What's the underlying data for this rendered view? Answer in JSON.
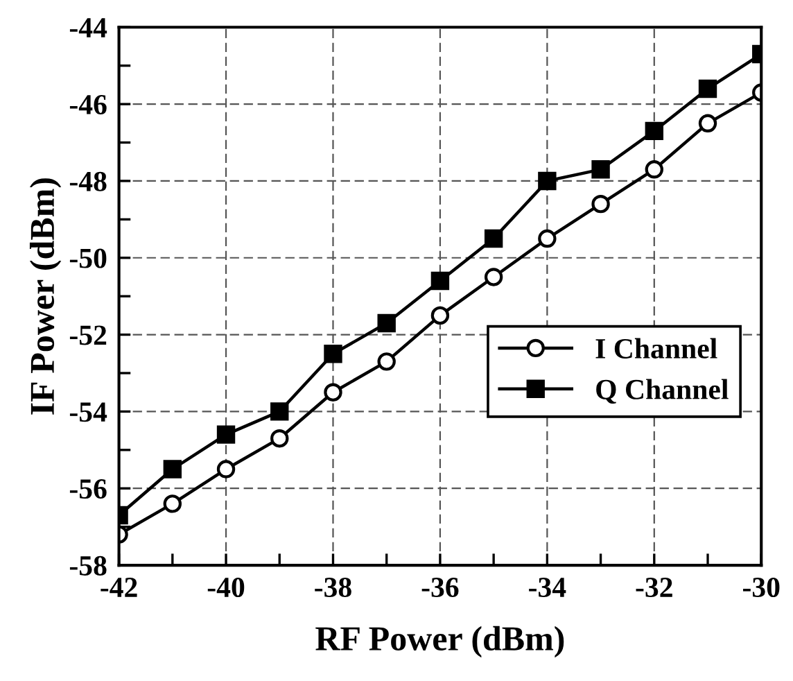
{
  "chart_data": {
    "type": "line",
    "xlabel": "RF Power (dBm)",
    "ylabel": "IF Power (dBm)",
    "x": [
      -42,
      -41,
      -40,
      -39,
      -38,
      -37,
      -36,
      -35,
      -34,
      -33,
      -32,
      -31,
      -30
    ],
    "series": [
      {
        "name": "I Channel",
        "color": "#000000",
        "marker": "circle",
        "values": [
          -57.2,
          -56.4,
          -55.5,
          -54.7,
          -53.5,
          -52.7,
          -51.5,
          -50.5,
          -49.5,
          -48.6,
          -47.7,
          -46.5,
          -45.7
        ]
      },
      {
        "name": "Q Channel",
        "color": "#000000",
        "marker": "square",
        "values": [
          -56.7,
          -55.5,
          -54.6,
          -54.0,
          -52.5,
          -51.7,
          -50.6,
          -49.5,
          -48.0,
          -47.7,
          -46.7,
          -45.6,
          -44.7
        ]
      }
    ],
    "xlim": [
      -42,
      -30
    ],
    "ylim": [
      -58,
      -44
    ],
    "xticks": [
      -42,
      {
        "value": -41,
        "label": null
      },
      -40,
      {
        "value": -39,
        "label": null
      },
      -38,
      {
        "value": -37,
        "label": null
      },
      -36,
      {
        "value": -35,
        "label": null
      },
      -34,
      {
        "value": -33,
        "label": null
      },
      -32,
      {
        "value": -31,
        "label": null
      },
      -30
    ],
    "yticks": [
      -58,
      {
        "value": -57,
        "label": null
      },
      -56,
      {
        "value": -55,
        "label": null
      },
      -54,
      {
        "value": -53,
        "label": null
      },
      -52,
      {
        "value": -51,
        "label": null
      },
      -50,
      {
        "value": -49,
        "label": null
      },
      -48,
      {
        "value": -47,
        "label": null
      },
      -46,
      {
        "value": -45,
        "label": null
      },
      -44
    ],
    "grid": true,
    "legend": "center right",
    "line_style": "solid"
  }
}
